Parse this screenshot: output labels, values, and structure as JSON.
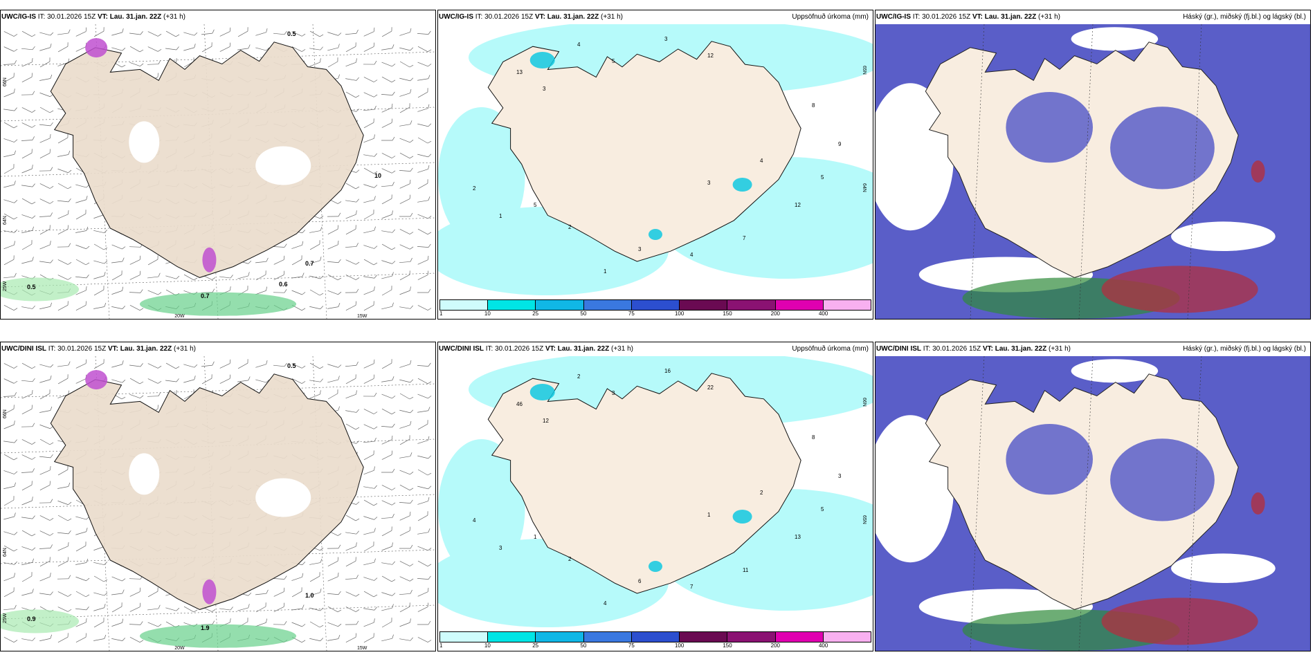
{
  "panels": [
    {
      "model": "UWC/IG-IS",
      "it_label": "IT:",
      "it_value": "30.01.2026 15Z",
      "vt_label": "VT:",
      "vt_value": "Lau. 31.jan. 22Z",
      "lead": "(+31 h)",
      "right_title": "",
      "map": {
        "type": "wind-precip-type",
        "lat_labels": [
          "66N",
          "64N"
        ],
        "lon_labels": [
          "25W",
          "20W",
          "15W"
        ],
        "values": [
          "0.5",
          "0.5",
          "0.7",
          "0.7",
          "0.6",
          "10"
        ]
      }
    },
    {
      "model": "UWC/IG-IS",
      "it_label": "IT:",
      "it_value": "30.01.2026 15Z",
      "vt_label": "VT:",
      "vt_value": "Lau. 31.jan. 22Z",
      "lead": "(+31 h)",
      "right_title": "Uppsöfnuð úrkoma (mm)",
      "map": {
        "type": "accumulated-precip",
        "lat_labels": [
          "65N",
          "64N"
        ],
        "values": [
          "4",
          "5",
          "3",
          "12",
          "13",
          "3",
          "2",
          "1",
          "5",
          "2",
          "3",
          "4",
          "7",
          "12",
          "5",
          "9",
          "8",
          "4",
          "3",
          "1"
        ]
      }
    },
    {
      "model": "UWC/IG-IS",
      "it_label": "IT:",
      "it_value": "30.01.2026 15Z",
      "vt_label": "VT:",
      "vt_value": "Lau. 31.jan. 22Z",
      "lead": "(+31 h)",
      "right_title": "Háský (gr.), miðský (fj.bl.) og lágský (bl.)",
      "map": {
        "type": "cloud-layers"
      }
    },
    {
      "model": "UWC/DINI ISL",
      "it_label": "IT:",
      "it_value": "30.01.2026 15Z",
      "vt_label": "VT:",
      "vt_value": "Lau. 31.jan. 22Z",
      "lead": "(+31 h)",
      "right_title": "",
      "map": {
        "type": "wind-precip-type",
        "lat_labels": [
          "66N",
          "64N"
        ],
        "lon_labels": [
          "25W",
          "20W",
          "15W"
        ],
        "values": [
          "0.5",
          "0.9",
          "1.0",
          "1.9"
        ]
      }
    },
    {
      "model": "UWC/DINI ISL",
      "it_label": "IT:",
      "it_value": "30.01.2026 15Z",
      "vt_label": "VT:",
      "vt_value": "Lau. 31.jan. 22Z",
      "lead": "(+31 h)",
      "right_title": "Uppsöfnuð úrkoma (mm)",
      "map": {
        "type": "accumulated-precip",
        "lat_labels": [
          "66N",
          "65N"
        ],
        "values": [
          "2",
          "3",
          "16",
          "22",
          "46",
          "12",
          "4",
          "3",
          "1",
          "2",
          "6",
          "7",
          "11",
          "13",
          "5",
          "3",
          "8",
          "2",
          "1",
          "4"
        ]
      }
    },
    {
      "model": "UWC/DINI ISL",
      "it_label": "IT:",
      "it_value": "30.01.2026 15Z",
      "vt_label": "VT:",
      "vt_value": "Lau. 31.jan. 22Z",
      "lead": "(+31 h)",
      "right_title": "Háský (gr.), miðský (fj.bl.) og lágský (bl.)",
      "map": {
        "type": "cloud-layers"
      }
    }
  ],
  "colorbar": {
    "labels": [
      "1",
      "10",
      "25",
      "50",
      "75",
      "100",
      "150",
      "200",
      "400"
    ],
    "colors": [
      "#cffcfc",
      "#00e5e5",
      "#10b7e6",
      "#3a78e0",
      "#2c4fcf",
      "#6a0a52",
      "#8a1272",
      "#e000b0",
      "#f8b0f0"
    ]
  },
  "colors": {
    "land": "#f8ede0",
    "land_wind": "#eadccc",
    "precip_light": "#b6fafa",
    "cloud_mid": "#5a5ec8",
    "cloud_high": "#2f8a3a",
    "cloud_low": "#b03040"
  }
}
